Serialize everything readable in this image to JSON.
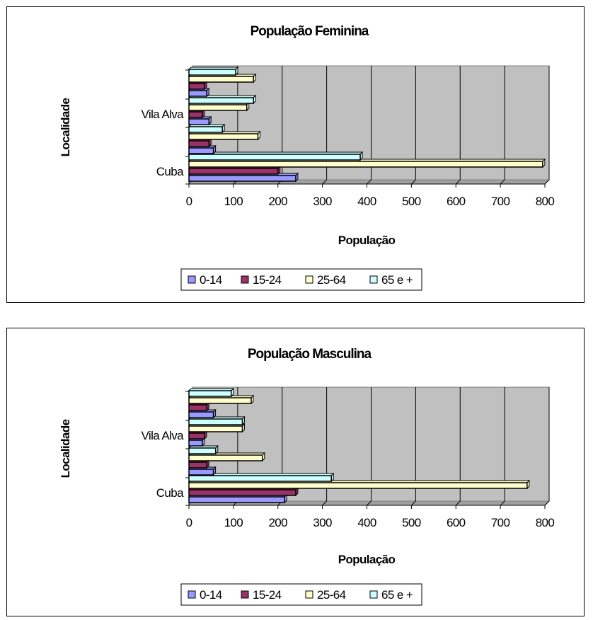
{
  "colors": {
    "plot_background": "#c0c0c0",
    "gridline": "#000000",
    "bar_outline": "#000000",
    "series": [
      "#9999ff",
      "#993366",
      "#ffffcc",
      "#ccffff"
    ]
  },
  "chart_data": [
    {
      "type": "bar",
      "orientation": "horizontal",
      "style": "3d-clustered",
      "title": "População Feminina",
      "xlabel": "População",
      "ylabel": "Localidade",
      "categories": [
        "Cuba",
        "",
        "Vila Alva",
        ""
      ],
      "xlim": [
        0,
        800
      ],
      "x_ticks": [
        "0",
        "100",
        "200",
        "300",
        "400",
        "500",
        "600",
        "700",
        "800"
      ],
      "grid": true,
      "legend_position": "bottom",
      "series": [
        {
          "name": "0-14",
          "values": [
            240,
            55,
            45,
            40
          ]
        },
        {
          "name": "15-24",
          "values": [
            200,
            45,
            30,
            35
          ]
        },
        {
          "name": "25-64",
          "values": [
            795,
            155,
            130,
            145
          ]
        },
        {
          "name": "65 e +",
          "values": [
            385,
            75,
            145,
            105
          ]
        }
      ]
    },
    {
      "type": "bar",
      "orientation": "horizontal",
      "style": "3d-clustered",
      "title": "População Masculina",
      "xlabel": "População",
      "ylabel": "Localidade",
      "categories": [
        "Cuba",
        "",
        "Vila Alva",
        ""
      ],
      "xlim": [
        0,
        800
      ],
      "x_ticks": [
        "0",
        "100",
        "200",
        "300",
        "400",
        "500",
        "600",
        "700",
        "800"
      ],
      "grid": true,
      "legend_position": "bottom",
      "series": [
        {
          "name": "0-14",
          "values": [
            215,
            55,
            30,
            55
          ]
        },
        {
          "name": "15-24",
          "values": [
            240,
            40,
            35,
            40
          ]
        },
        {
          "name": "25-64",
          "values": [
            760,
            165,
            120,
            140
          ]
        },
        {
          "name": "65 e +",
          "values": [
            320,
            60,
            120,
            95
          ]
        }
      ]
    }
  ]
}
